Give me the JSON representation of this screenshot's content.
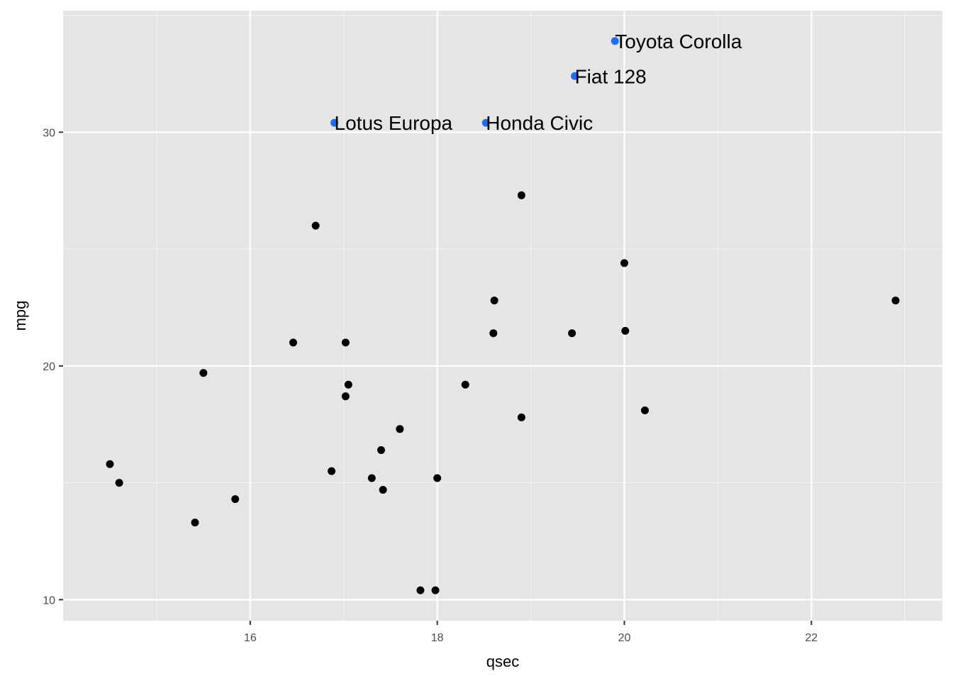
{
  "chart_data": {
    "type": "scatter",
    "xlabel": "qsec",
    "ylabel": "mpg",
    "xlim": [
      14.0,
      23.4
    ],
    "ylim": [
      9.1,
      35.2
    ],
    "x_ticks": [
      16,
      18,
      20,
      22
    ],
    "y_ticks": [
      10,
      20,
      30
    ],
    "grid": true,
    "panel_background": "#E5E5E5",
    "point_color": "#000000",
    "highlight_color": "#1E6FEB",
    "points": [
      {
        "x": 16.46,
        "y": 21.0
      },
      {
        "x": 17.02,
        "y": 21.0
      },
      {
        "x": 18.61,
        "y": 22.8
      },
      {
        "x": 19.44,
        "y": 21.4
      },
      {
        "x": 17.02,
        "y": 18.7
      },
      {
        "x": 20.22,
        "y": 18.1
      },
      {
        "x": 15.84,
        "y": 14.3
      },
      {
        "x": 20.0,
        "y": 24.4
      },
      {
        "x": 22.9,
        "y": 22.8
      },
      {
        "x": 18.3,
        "y": 19.2
      },
      {
        "x": 18.9,
        "y": 17.8
      },
      {
        "x": 17.4,
        "y": 16.4
      },
      {
        "x": 17.6,
        "y": 17.3
      },
      {
        "x": 18.0,
        "y": 15.2
      },
      {
        "x": 17.98,
        "y": 10.4
      },
      {
        "x": 17.82,
        "y": 10.4
      },
      {
        "x": 17.42,
        "y": 14.7
      },
      {
        "x": 19.47,
        "y": 32.4,
        "label": "Fiat 128",
        "highlight": true
      },
      {
        "x": 18.52,
        "y": 30.4,
        "label": "Honda Civic",
        "highlight": true
      },
      {
        "x": 19.9,
        "y": 33.9,
        "label": "Toyota Corolla",
        "highlight": true
      },
      {
        "x": 20.01,
        "y": 21.5
      },
      {
        "x": 16.87,
        "y": 15.5
      },
      {
        "x": 17.3,
        "y": 15.2
      },
      {
        "x": 15.41,
        "y": 13.3
      },
      {
        "x": 17.05,
        "y": 19.2
      },
      {
        "x": 18.9,
        "y": 27.3
      },
      {
        "x": 16.7,
        "y": 26.0
      },
      {
        "x": 16.9,
        "y": 30.4,
        "label": "Lotus Europa",
        "highlight": true
      },
      {
        "x": 14.5,
        "y": 15.8
      },
      {
        "x": 15.5,
        "y": 19.7
      },
      {
        "x": 14.6,
        "y": 15.0
      },
      {
        "x": 18.6,
        "y": 21.4
      }
    ]
  }
}
